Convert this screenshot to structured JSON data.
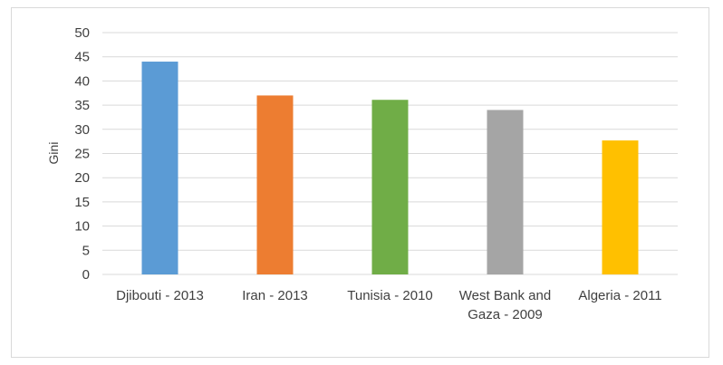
{
  "chart_data": {
    "type": "bar",
    "title": "",
    "xlabel": "",
    "ylabel": "Gini",
    "ylim": [
      0,
      50
    ],
    "yticks": [
      0,
      5,
      10,
      15,
      20,
      25,
      30,
      35,
      40,
      45,
      50
    ],
    "grid": true,
    "legend": "none",
    "categories": [
      [
        "Djibouti - 2013"
      ],
      [
        "Iran - 2013"
      ],
      [
        "Tunisia - 2010"
      ],
      [
        "West Bank and",
        "Gaza - 2009"
      ],
      [
        "Algeria - 2011"
      ]
    ],
    "values": [
      44.0,
      37.0,
      36.1,
      34.0,
      27.7
    ],
    "colors": [
      "#5b9bd5",
      "#ed7d31",
      "#70ad47",
      "#a5a5a5",
      "#ffc000"
    ]
  }
}
